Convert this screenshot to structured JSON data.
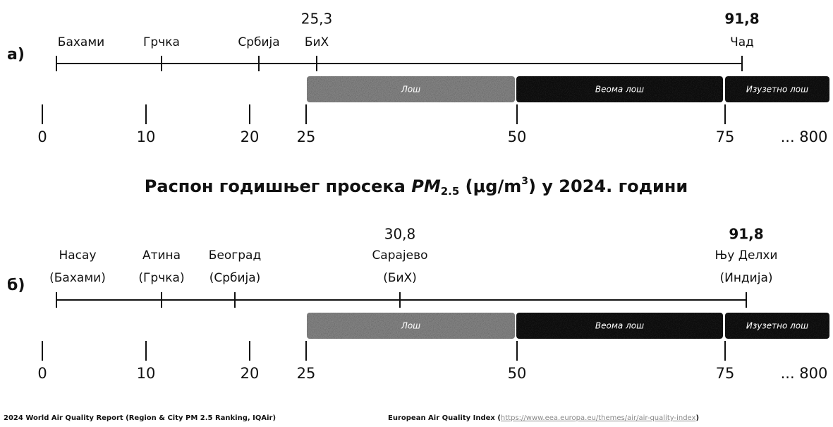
{
  "title": {
    "before": "Распон годишњег просека ",
    "pm": "PM",
    "sub": "2.5",
    "unit": " (μg/m",
    "sup": "3",
    "after": ") у 2024. години"
  },
  "panels": [
    {
      "label": "а)",
      "markers": [
        {
          "name": "Бахами"
        },
        {
          "name": "Грчка"
        },
        {
          "name": "Србија"
        },
        {
          "name": "БиХ",
          "value_label": "25,3"
        },
        {
          "name": "Чад",
          "value_label": "91,8"
        }
      ],
      "bands": [
        "Лош",
        "Веома лош",
        "Изузетно лош"
      ],
      "scale": [
        "0",
        "10",
        "20",
        "25",
        "50",
        "75",
        "... 800"
      ]
    },
    {
      "label": "б)",
      "markers": [
        {
          "name": "Насау",
          "country": "(Бахами)"
        },
        {
          "name": "Атина",
          "country": "(Грчка)"
        },
        {
          "name": "Београд",
          "country": "(Србија)"
        },
        {
          "name": "Сарајево",
          "country": "(БиХ)",
          "value_label": "30,8"
        },
        {
          "name": "Њу Делхи",
          "country": "(Индија)",
          "value_label": "91,8"
        }
      ],
      "bands": [
        "Лош",
        "Веома лош",
        "Изузетно лош"
      ],
      "scale": [
        "0",
        "10",
        "20",
        "25",
        "50",
        "75",
        "... 800"
      ]
    }
  ],
  "footer": {
    "left": "2024 World Air Quality Report (Region & City PM 2.5 Ranking, IQAir)",
    "right": "European Air Quality Index (",
    "url": "https://www.eea.europa.eu/themes/air/air-quality-index",
    "close": ")"
  }
}
